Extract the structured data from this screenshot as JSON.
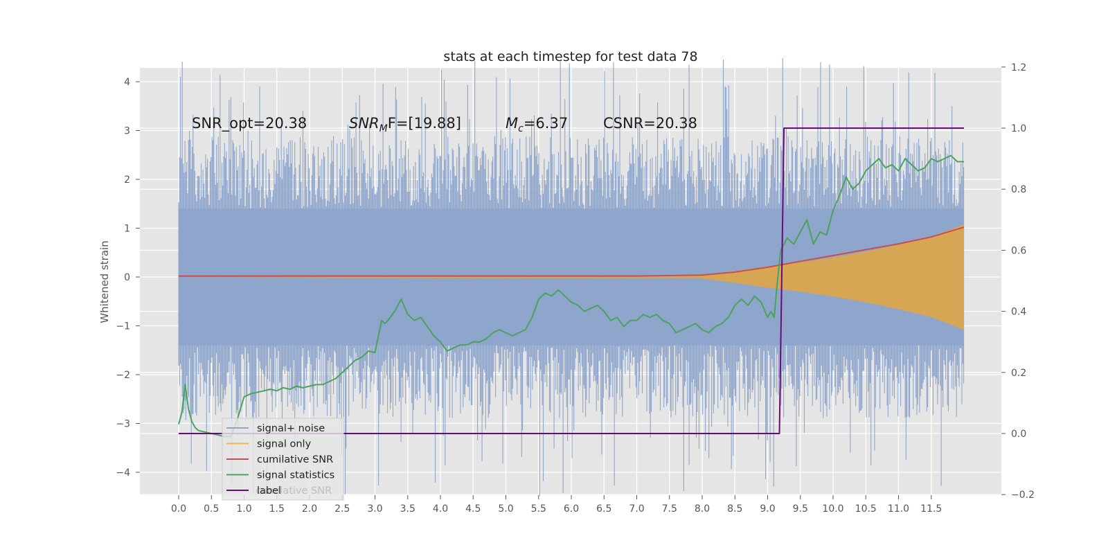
{
  "chart_data": {
    "type": "line",
    "title": "stats at each timestep for test data 78",
    "ylabel": "Whitened strain",
    "xlabel": "",
    "xlim": [
      -0.5,
      12.5
    ],
    "ylim": [
      -4.4,
      4.3
    ],
    "y2lim": [
      -0.2,
      1.2
    ],
    "xticks": [
      "0.0",
      "0.5",
      "1.0",
      "1.5",
      "2.0",
      "2.5",
      "3.0",
      "3.5",
      "4.0",
      "4.5",
      "5.0",
      "5.5",
      "6.0",
      "6.5",
      "7.0",
      "7.5",
      "8.0",
      "8.5",
      "9.0",
      "9.5",
      "10.0",
      "10.5",
      "11.0",
      "11.5"
    ],
    "yticks": [
      "4",
      "3",
      "2",
      "1",
      "0",
      "−1",
      "−2",
      "−3",
      "−4"
    ],
    "y2ticks": [
      "1.2",
      "1.0",
      "0.8",
      "0.6",
      "0.4",
      "0.2",
      "0.0",
      "−0.2"
    ],
    "grid": true,
    "legend_position": "lower-left",
    "annotations": {
      "snr_opt": "SNR_opt=20.38",
      "snr_mf_prefix": "SNR",
      "snr_mf_sub": "M",
      "snr_mf_suffix": "F=[19.88]",
      "mc_prefix": "M",
      "mc_sub": "c",
      "mc_suffix": "=6.37",
      "csnr": "CSNR=20.38"
    },
    "legend": [
      {
        "name": "signal+ noise",
        "color": "#8ea5cc"
      },
      {
        "name": "signal only",
        "color": "#e8b84a"
      },
      {
        "name": "cumilative SNR",
        "color": "#cc4d4d"
      },
      {
        "name": "signal statistics",
        "color": "#4aa35c"
      },
      {
        "name": "label",
        "color": "#6a0a7a"
      }
    ],
    "legend_overlap_text": "cumilative SNR",
    "series": [
      {
        "name": "signal+ noise",
        "axis": "left",
        "color": "#8ea5cc",
        "x_range": [
          0,
          12
        ],
        "envelope_typical": 2.4,
        "envelope_peak": 3.9
      },
      {
        "name": "signal only",
        "axis": "left",
        "color": "#dda64a",
        "x": [
          0,
          8.0,
          8.5,
          9.0,
          9.5,
          10.0,
          10.5,
          11.0,
          11.5,
          12.0
        ],
        "amplitude": [
          0,
          0.03,
          0.12,
          0.22,
          0.3,
          0.4,
          0.52,
          0.66,
          0.82,
          1.08
        ]
      },
      {
        "name": "cumilative SNR",
        "axis": "left",
        "color": "#cc4d4d",
        "x": [
          0,
          7.0,
          8.0,
          8.5,
          9.0,
          9.5,
          10.0,
          10.5,
          11.0,
          11.5,
          12.0
        ],
        "y": [
          0.02,
          0.02,
          0.04,
          0.1,
          0.2,
          0.32,
          0.44,
          0.56,
          0.68,
          0.82,
          1.02
        ]
      },
      {
        "name": "signal statistics",
        "axis": "right",
        "color": "#4aa35c",
        "x": [
          0,
          0.05,
          0.1,
          0.15,
          0.2,
          0.25,
          0.3,
          0.4,
          0.5,
          0.6,
          0.7,
          0.8,
          0.9,
          1.0,
          1.1,
          1.2,
          1.3,
          1.4,
          1.5,
          1.6,
          1.7,
          1.8,
          1.9,
          2.0,
          2.1,
          2.2,
          2.3,
          2.4,
          2.5,
          2.6,
          2.7,
          2.8,
          2.9,
          3.0,
          3.1,
          3.15,
          3.2,
          3.3,
          3.4,
          3.5,
          3.6,
          3.7,
          3.8,
          3.9,
          4.0,
          4.1,
          4.2,
          4.3,
          4.4,
          4.5,
          4.6,
          4.7,
          4.8,
          4.9,
          5.0,
          5.1,
          5.2,
          5.3,
          5.4,
          5.5,
          5.6,
          5.7,
          5.8,
          5.9,
          6.0,
          6.1,
          6.2,
          6.3,
          6.4,
          6.5,
          6.6,
          6.7,
          6.8,
          6.9,
          7.0,
          7.1,
          7.2,
          7.3,
          7.4,
          7.5,
          7.6,
          7.7,
          7.8,
          7.9,
          8.0,
          8.1,
          8.2,
          8.3,
          8.4,
          8.5,
          8.6,
          8.7,
          8.8,
          8.9,
          9.0,
          9.05,
          9.1,
          9.15,
          9.2,
          9.3,
          9.4,
          9.5,
          9.55,
          9.6,
          9.7,
          9.8,
          9.9,
          10.0,
          10.1,
          10.2,
          10.3,
          10.4,
          10.5,
          10.6,
          10.7,
          10.8,
          10.9,
          11.0,
          11.1,
          11.2,
          11.3,
          11.4,
          11.5,
          11.6,
          11.7,
          11.8,
          11.9,
          12.0
        ],
        "y": [
          0.03,
          0.07,
          0.16,
          0.08,
          0.04,
          0.02,
          0.01,
          0.005,
          0.0,
          -0.005,
          -0.01,
          -0.01,
          0.05,
          0.12,
          0.13,
          0.135,
          0.14,
          0.145,
          0.14,
          0.15,
          0.145,
          0.155,
          0.15,
          0.155,
          0.16,
          0.16,
          0.17,
          0.18,
          0.2,
          0.22,
          0.24,
          0.25,
          0.27,
          0.265,
          0.37,
          0.36,
          0.37,
          0.4,
          0.44,
          0.39,
          0.37,
          0.38,
          0.35,
          0.32,
          0.3,
          0.27,
          0.28,
          0.29,
          0.29,
          0.3,
          0.3,
          0.31,
          0.33,
          0.34,
          0.33,
          0.32,
          0.33,
          0.34,
          0.38,
          0.44,
          0.46,
          0.45,
          0.47,
          0.45,
          0.43,
          0.42,
          0.4,
          0.41,
          0.42,
          0.4,
          0.37,
          0.38,
          0.35,
          0.37,
          0.37,
          0.39,
          0.38,
          0.39,
          0.37,
          0.36,
          0.33,
          0.34,
          0.35,
          0.36,
          0.34,
          0.33,
          0.35,
          0.36,
          0.38,
          0.42,
          0.44,
          0.42,
          0.45,
          0.43,
          0.38,
          0.4,
          0.38,
          0.5,
          0.6,
          0.64,
          0.62,
          0.66,
          0.68,
          0.7,
          0.62,
          0.66,
          0.65,
          0.73,
          0.78,
          0.84,
          0.8,
          0.82,
          0.86,
          0.88,
          0.9,
          0.87,
          0.88,
          0.86,
          0.9,
          0.88,
          0.86,
          0.87,
          0.9,
          0.89,
          0.9,
          0.91,
          0.89,
          0.89
        ]
      },
      {
        "name": "label",
        "axis": "right",
        "color": "#6a0a7a",
        "x": [
          0,
          9.18,
          9.25,
          12.0
        ],
        "y": [
          0,
          0,
          1.0,
          1.0
        ]
      }
    ]
  }
}
